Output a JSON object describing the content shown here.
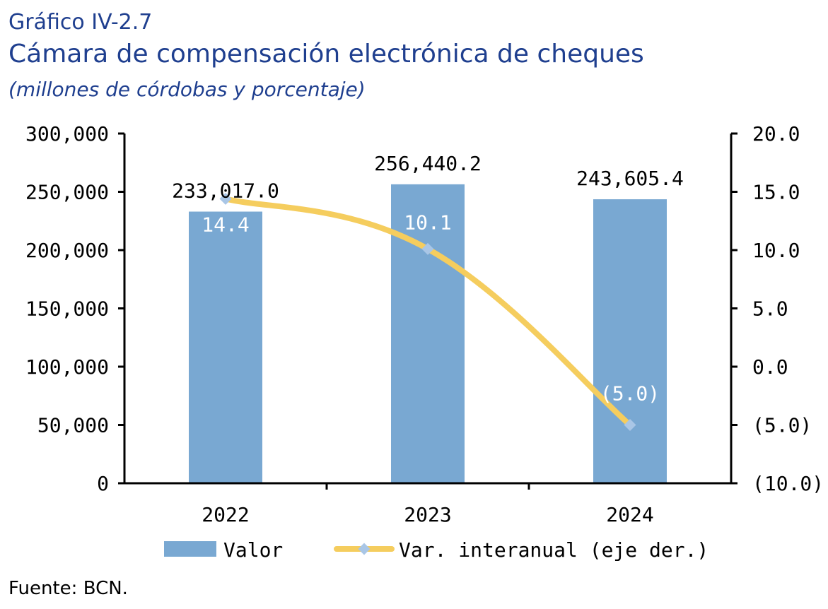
{
  "header": {
    "figure_label": "Gráfico IV-2.7",
    "title": "Cámara de compensación electrónica de cheques",
    "subtitle": "(millones de córdobas y porcentaje)"
  },
  "footer": {
    "source": "Fuente: BCN."
  },
  "chart_data": {
    "type": "bar",
    "categories": [
      "2022",
      "2023",
      "2024"
    ],
    "series": [
      {
        "name": "Valor",
        "type": "bar",
        "axis": "left",
        "values": [
          233017.0,
          256440.2,
          243605.4
        ],
        "labels": [
          "233,017.0",
          "256,440.2",
          "243,605.4"
        ],
        "color": "#79a8d2"
      },
      {
        "name": "Var. interanual (eje der.)",
        "type": "line",
        "axis": "right",
        "values": [
          14.4,
          10.1,
          -5.0
        ],
        "labels": [
          "14.4",
          "10.1",
          "(5.0)"
        ],
        "color": "#f5cd5e",
        "marker_color": "#a9c6e6"
      }
    ],
    "y_left": {
      "lim": [
        0,
        300000
      ],
      "ticks": [
        0,
        50000,
        100000,
        150000,
        200000,
        250000,
        300000
      ],
      "tick_labels": [
        "0",
        "50,000",
        "100,000",
        "150,000",
        "200,000",
        "250,000",
        "300,000"
      ]
    },
    "y_right": {
      "lim": [
        -10,
        20
      ],
      "ticks": [
        -10,
        -5,
        0,
        5,
        10,
        15,
        20
      ],
      "tick_labels": [
        "(10.0)",
        "(5.0)",
        "0.0",
        "5.0",
        "10.0",
        "15.0",
        "20.0"
      ]
    },
    "grid": false,
    "legend_position": "bottom"
  }
}
